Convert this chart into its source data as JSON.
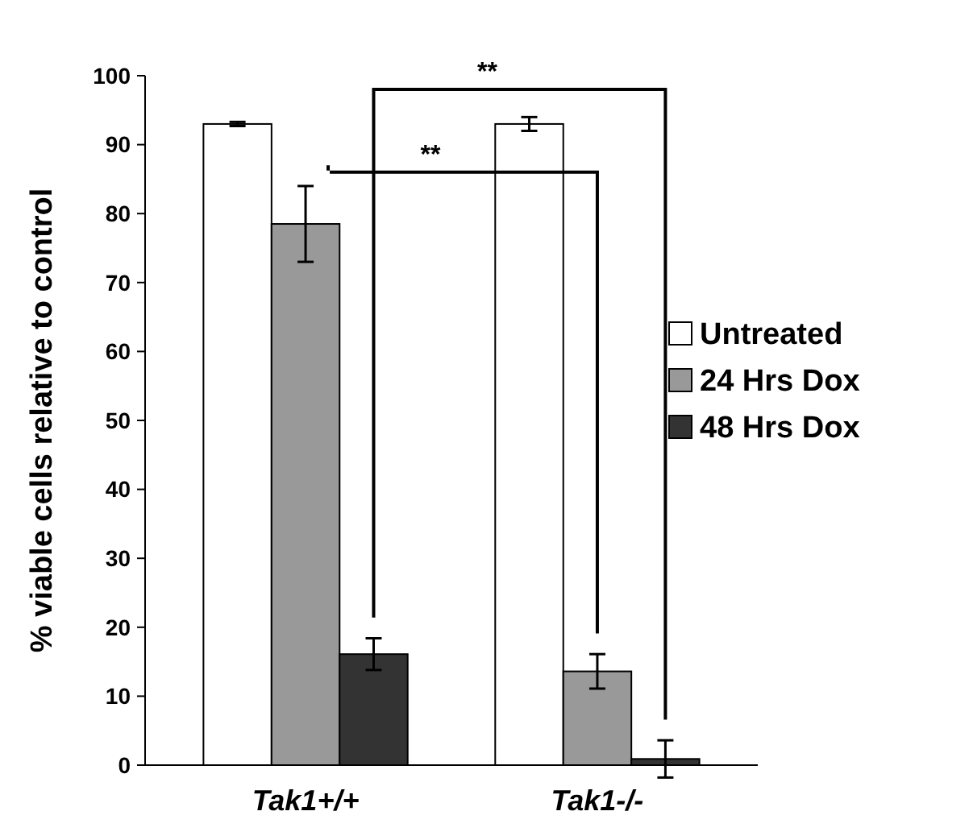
{
  "chart_data": {
    "type": "bar",
    "ylabel": "% viable cells relative to control",
    "categories": [
      "Tak1+/+",
      "Tak1-/-"
    ],
    "series": [
      {
        "name": "Untreated",
        "color": "#ffffff",
        "values": [
          93,
          93
        ],
        "errors": [
          0.3,
          1
        ]
      },
      {
        "name": "24 Hrs Dox",
        "color": "#999999",
        "values": [
          78.5,
          13.6
        ],
        "errors": [
          5.5,
          2.5
        ]
      },
      {
        "name": "48 Hrs Dox",
        "color": "#333333",
        "values": [
          16.1,
          0.9
        ],
        "errors": [
          2.3,
          2.7
        ]
      }
    ],
    "ylim": [
      0,
      100
    ],
    "yticks": [
      0,
      10,
      20,
      30,
      40,
      50,
      60,
      70,
      80,
      90,
      100
    ],
    "legend": "right",
    "annotations": [
      "**",
      "**"
    ]
  }
}
